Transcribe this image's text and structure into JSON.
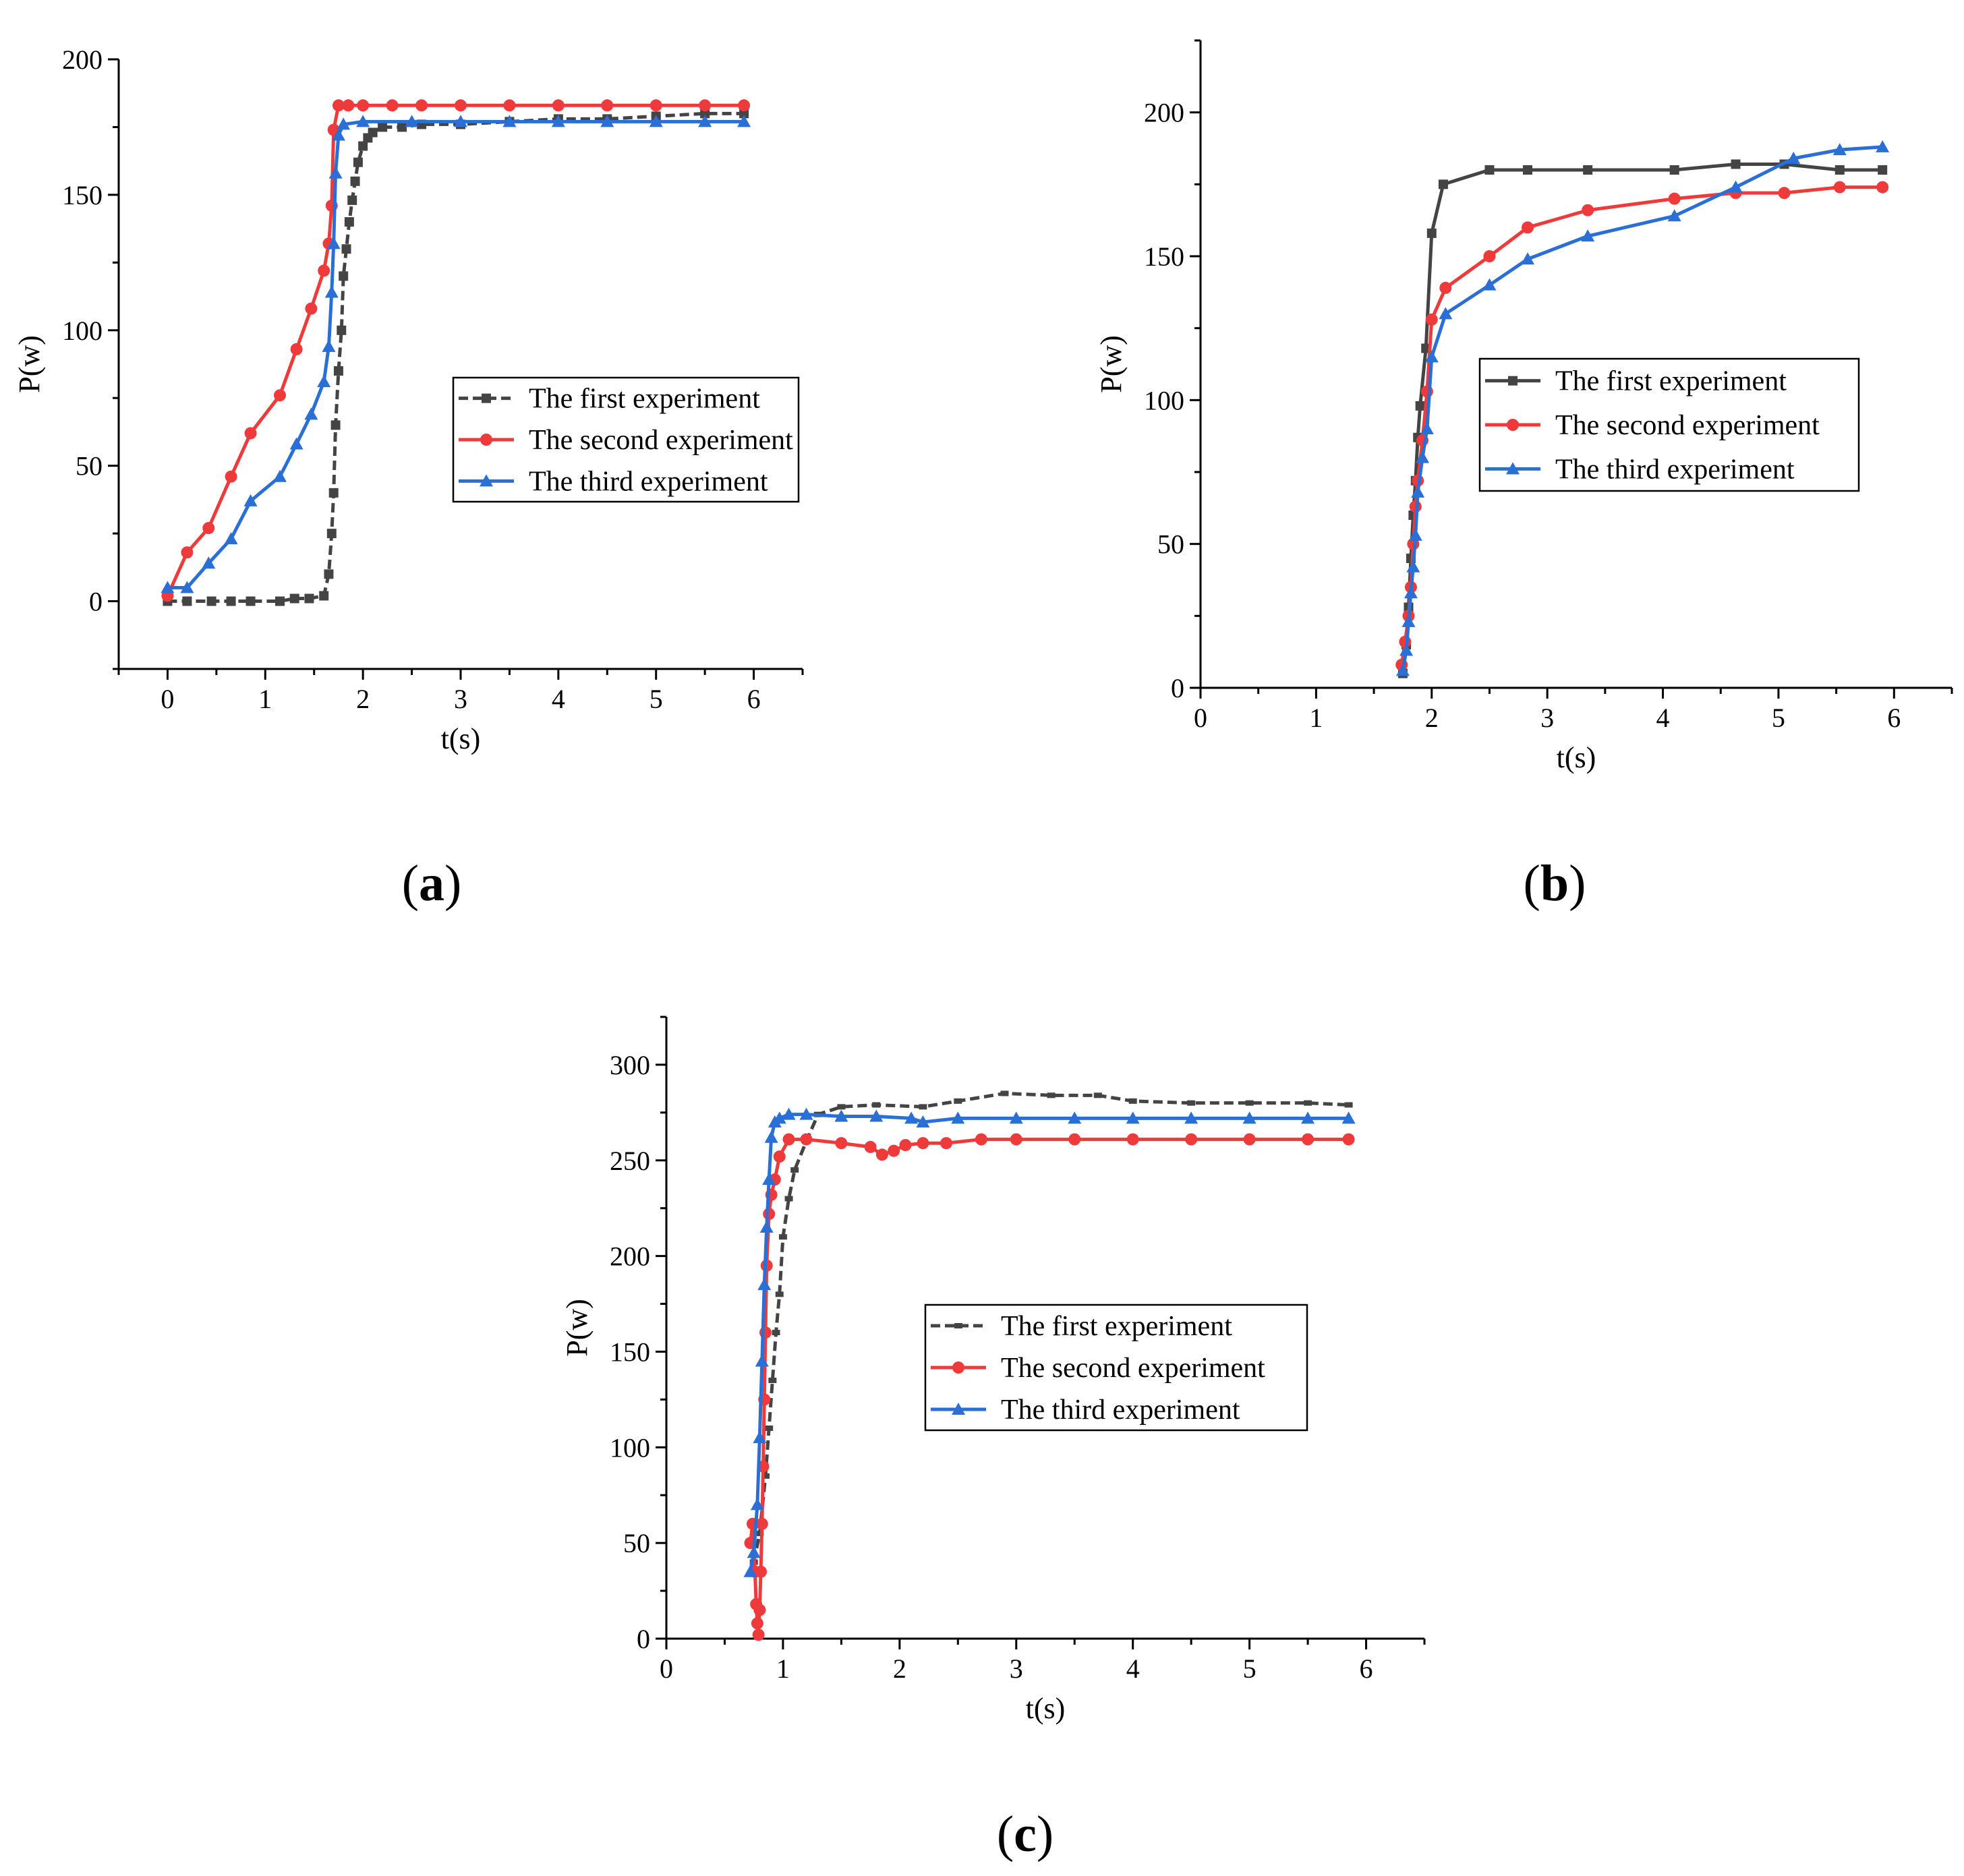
{
  "colors": {
    "first": "#444444",
    "second": "#ee3a3a",
    "third": "#2a6fd6"
  },
  "chart_data": [
    {
      "id": "a",
      "type": "line",
      "panel_label": "a",
      "xlabel": "t(s)",
      "ylabel": "P(w)",
      "xlim": [
        -0.5,
        6.5
      ],
      "ylim": [
        -25,
        200
      ],
      "xticks": [
        0,
        1,
        2,
        3,
        4,
        5,
        6
      ],
      "yticks": [
        0,
        50,
        100,
        150,
        200
      ],
      "legend": {
        "position": "center-right",
        "entries": [
          "The first experiment",
          "The second experiment",
          "The third experiment"
        ]
      },
      "series": [
        {
          "name": "The first experiment",
          "color": "#444444",
          "marker": "square",
          "dashed": true,
          "x": [
            0,
            0.2,
            0.45,
            0.65,
            0.85,
            1.15,
            1.3,
            1.45,
            1.6,
            1.65,
            1.68,
            1.7,
            1.72,
            1.75,
            1.78,
            1.8,
            1.83,
            1.86,
            1.89,
            1.92,
            1.95,
            2.0,
            2.05,
            2.1,
            2.2,
            2.4,
            2.6,
            3.0,
            3.5,
            4.0,
            4.5,
            5.0,
            5.5,
            5.9
          ],
          "y": [
            0,
            0,
            0,
            0,
            0,
            0,
            1,
            1,
            2,
            10,
            25,
            40,
            65,
            85,
            100,
            120,
            130,
            140,
            148,
            155,
            162,
            168,
            171,
            173,
            175,
            175,
            176,
            176,
            177,
            178,
            178,
            179,
            180,
            180
          ]
        },
        {
          "name": "The second experiment",
          "color": "#ee3a3a",
          "marker": "circle",
          "dashed": false,
          "x": [
            0,
            0.2,
            0.42,
            0.65,
            0.85,
            1.15,
            1.32,
            1.47,
            1.6,
            1.65,
            1.68,
            1.7,
            1.75,
            1.85,
            2.0,
            2.3,
            2.6,
            3.0,
            3.5,
            4.0,
            4.5,
            5.0,
            5.5,
            5.9
          ],
          "y": [
            2,
            18,
            27,
            46,
            62,
            76,
            93,
            108,
            122,
            132,
            146,
            174,
            183,
            183,
            183,
            183,
            183,
            183,
            183,
            183,
            183,
            183,
            183,
            183
          ]
        },
        {
          "name": "The third experiment",
          "color": "#2a6fd6",
          "marker": "triangle",
          "dashed": false,
          "x": [
            0,
            0.2,
            0.42,
            0.65,
            0.85,
            1.15,
            1.32,
            1.47,
            1.6,
            1.65,
            1.68,
            1.7,
            1.72,
            1.75,
            1.8,
            2.0,
            2.5,
            3.0,
            3.5,
            4.0,
            4.5,
            5.0,
            5.5,
            5.9
          ],
          "y": [
            5,
            5,
            14,
            23,
            37,
            46,
            58,
            69,
            81,
            94,
            114,
            132,
            158,
            172,
            176,
            177,
            177,
            177,
            177,
            177,
            177,
            177,
            177,
            177
          ]
        }
      ]
    },
    {
      "id": "b",
      "type": "line",
      "panel_label": "b",
      "xlabel": "t(s)",
      "ylabel": "P(w)",
      "xlim": [
        0,
        6.5
      ],
      "ylim": [
        0,
        225
      ],
      "xticks": [
        0,
        1,
        2,
        3,
        4,
        5,
        6
      ],
      "yticks": [
        0,
        50,
        100,
        150,
        200
      ],
      "legend": {
        "position": "center-right",
        "entries": [
          "The first experiment",
          "The second experiment",
          "The third experiment"
        ]
      },
      "series": [
        {
          "name": "The first experiment",
          "color": "#444444",
          "marker": "square",
          "dashed": false,
          "x": [
            1.75,
            1.78,
            1.8,
            1.82,
            1.84,
            1.86,
            1.88,
            1.9,
            1.95,
            2.0,
            2.1,
            2.5,
            2.83,
            3.35,
            4.1,
            4.63,
            5.05,
            5.53,
            5.9
          ],
          "y": [
            5,
            15,
            28,
            45,
            60,
            72,
            87,
            98,
            118,
            158,
            175,
            180,
            180,
            180,
            180,
            182,
            182,
            180,
            180
          ]
        },
        {
          "name": "The second experiment",
          "color": "#ee3a3a",
          "marker": "circle",
          "dashed": false,
          "x": [
            1.74,
            1.77,
            1.8,
            1.82,
            1.84,
            1.86,
            1.88,
            1.92,
            1.96,
            2.0,
            2.12,
            2.5,
            2.83,
            3.35,
            4.1,
            4.63,
            5.05,
            5.53,
            5.9
          ],
          "y": [
            8,
            16,
            25,
            35,
            50,
            63,
            72,
            86,
            103,
            128,
            139,
            150,
            160,
            166,
            170,
            172,
            172,
            174,
            174
          ]
        },
        {
          "name": "The third experiment",
          "color": "#2a6fd6",
          "marker": "triangle",
          "dashed": false,
          "x": [
            1.75,
            1.78,
            1.8,
            1.82,
            1.84,
            1.86,
            1.88,
            1.92,
            1.96,
            2.0,
            2.12,
            2.5,
            2.83,
            3.35,
            4.1,
            4.63,
            5.13,
            5.53,
            5.9
          ],
          "y": [
            6,
            13,
            23,
            33,
            42,
            53,
            68,
            80,
            90,
            115,
            130,
            140,
            149,
            157,
            164,
            174,
            184,
            187,
            188
          ]
        }
      ]
    },
    {
      "id": "c",
      "type": "line",
      "panel_label": "c",
      "xlabel": "t(s)",
      "ylabel": "P(w)",
      "xlim": [
        0,
        6.5
      ],
      "ylim": [
        0,
        325
      ],
      "xticks": [
        0,
        1,
        2,
        3,
        4,
        5,
        6
      ],
      "yticks": [
        0,
        50,
        100,
        150,
        200,
        250,
        300
      ],
      "legend": {
        "position": "center-right",
        "entries": [
          "The first experiment",
          "The second experiment",
          "The third experiment"
        ]
      },
      "series": [
        {
          "name": "The first experiment",
          "color": "#444444",
          "marker": "dash",
          "dashed": true,
          "x": [
            0.75,
            0.8,
            0.85,
            0.88,
            0.91,
            0.94,
            0.97,
            1.0,
            1.05,
            1.1,
            1.2,
            1.3,
            1.5,
            1.8,
            2.2,
            2.5,
            2.9,
            3.3,
            3.7,
            4.0,
            4.5,
            5.0,
            5.5,
            5.85
          ],
          "y": [
            40,
            55,
            85,
            110,
            135,
            160,
            180,
            210,
            230,
            245,
            260,
            274,
            278,
            279,
            278,
            281,
            285,
            284,
            284,
            281,
            280,
            280,
            280,
            279
          ]
        },
        {
          "name": "The second experiment",
          "color": "#ee3a3a",
          "marker": "circle",
          "dashed": false,
          "x": [
            0.72,
            0.74,
            0.76,
            0.77,
            0.78,
            0.79,
            0.8,
            0.81,
            0.82,
            0.83,
            0.84,
            0.85,
            0.86,
            0.88,
            0.9,
            0.93,
            0.97,
            1.05,
            1.2,
            1.5,
            1.75,
            1.85,
            1.95,
            2.05,
            2.2,
            2.4,
            2.7,
            3.0,
            3.5,
            4.0,
            4.5,
            5.0,
            5.5,
            5.85
          ],
          "y": [
            50,
            60,
            35,
            18,
            8,
            2,
            15,
            35,
            60,
            90,
            125,
            160,
            195,
            222,
            232,
            240,
            252,
            261,
            261,
            259,
            257,
            253,
            255,
            258,
            259,
            259,
            261,
            261,
            261,
            261,
            261,
            261,
            261,
            261
          ]
        },
        {
          "name": "The third experiment",
          "color": "#2a6fd6",
          "marker": "triangle",
          "dashed": false,
          "x": [
            0.72,
            0.75,
            0.78,
            0.8,
            0.82,
            0.84,
            0.86,
            0.88,
            0.9,
            0.93,
            0.97,
            1.05,
            1.2,
            1.5,
            1.8,
            2.1,
            2.2,
            2.5,
            3.0,
            3.5,
            4.0,
            4.5,
            5.0,
            5.5,
            5.85
          ],
          "y": [
            35,
            45,
            70,
            105,
            145,
            185,
            215,
            240,
            262,
            270,
            272,
            274,
            274,
            273,
            273,
            272,
            270,
            272,
            272,
            272,
            272,
            272,
            272,
            272,
            272
          ]
        }
      ]
    }
  ]
}
